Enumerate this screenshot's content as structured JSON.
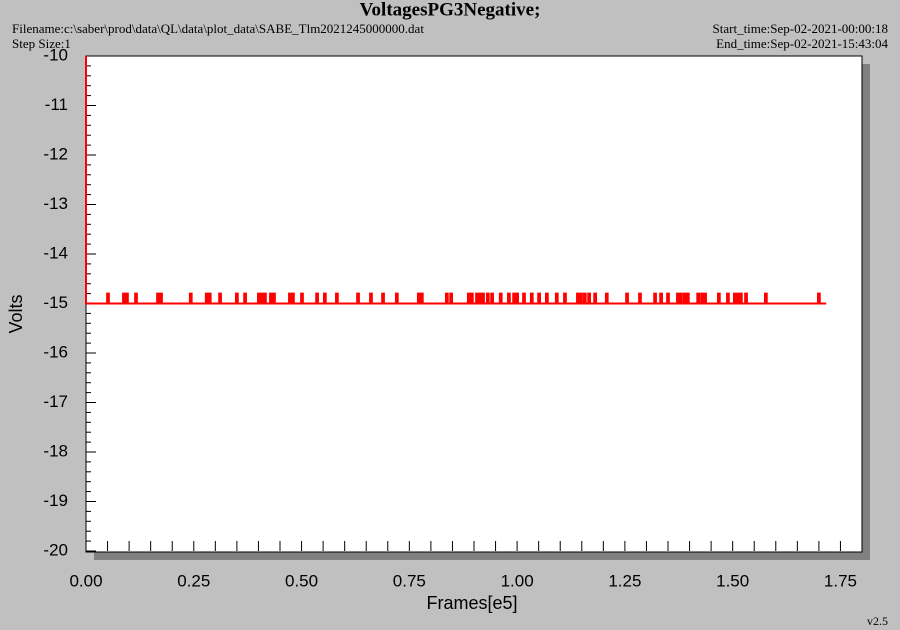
{
  "chart_data": {
    "type": "line",
    "step": true,
    "title": "VoltagesPG3Negative;",
    "filename": "Filename:c:\\saber\\prod\\data\\QL\\data\\plot_data\\SABE_Tlm2021245000000.dat",
    "step_size": "Step Size:1",
    "start_time": "Start_time:Sep-02-2021-00:00:18",
    "end_time": "End_time:Sep-02-2021-15:43:04",
    "xlabel": "Frames[e5]",
    "ylabel": "Volts",
    "version": "v2.5",
    "color": "#ff0000",
    "xlim": [
      0,
      1.8
    ],
    "ylim": [
      -20,
      -10
    ],
    "xticks": [
      {
        "value": 0,
        "label": "0.00"
      },
      0.25,
      {
        "value": 0.5,
        "label": "0.50"
      },
      0.75,
      {
        "value": 1,
        "label": "1.00"
      },
      1.25,
      {
        "value": 1.5,
        "label": "1.50"
      },
      1.75
    ],
    "yticks": [
      -10,
      -11,
      -12,
      -13,
      -14,
      -15,
      -16,
      -17,
      -18,
      -19,
      -20
    ],
    "x": [
      0,
      0,
      0.049,
      0.053,
      0.086,
      0.09,
      0.093,
      0.097,
      0.114,
      0.118,
      0.165,
      0.169,
      0.172,
      0.176,
      0.241,
      0.245,
      0.278,
      0.282,
      0.285,
      0.289,
      0.309,
      0.313,
      0.348,
      0.352,
      0.367,
      0.371,
      0.399,
      0.403,
      0.406,
      0.41,
      0.413,
      0.417,
      0.427,
      0.431,
      0.434,
      0.438,
      0.471,
      0.475,
      0.478,
      0.482,
      0.499,
      0.503,
      0.534,
      0.538,
      0.552,
      0.556,
      0.58,
      0.584,
      0.629,
      0.633,
      0.659,
      0.663,
      0.687,
      0.691,
      0.719,
      0.723,
      0.77,
      0.774,
      0.777,
      0.781,
      0.835,
      0.839,
      0.845,
      0.849,
      0.886,
      0.89,
      0.893,
      0.897,
      0.905,
      0.909,
      0.912,
      0.916,
      0.919,
      0.923,
      0.93,
      0.934,
      0.94,
      0.944,
      0.96,
      0.964,
      0.979,
      0.983,
      0.991,
      0.995,
      0.998,
      1.002,
      1.014,
      1.018,
      1.032,
      1.036,
      1.049,
      1.053,
      1.067,
      1.071,
      1.09,
      1.094,
      1.109,
      1.113,
      1.139,
      1.143,
      1.146,
      1.15,
      1.155,
      1.159,
      1.165,
      1.169,
      1.179,
      1.183,
      1.206,
      1.21,
      1.253,
      1.257,
      1.283,
      1.287,
      1.318,
      1.322,
      1.332,
      1.336,
      1.348,
      1.352,
      1.371,
      1.375,
      1.378,
      1.382,
      1.387,
      1.391,
      1.394,
      1.398,
      1.418,
      1.422,
      1.427,
      1.431,
      1.434,
      1.438,
      1.466,
      1.47,
      1.487,
      1.491,
      1.503,
      1.507,
      1.51,
      1.514,
      1.517,
      1.521,
      1.529,
      1.533,
      1.575,
      1.579,
      1.698,
      1.702,
      1.717
    ],
    "values": [
      -10,
      -15,
      -14.8,
      -15,
      -14.8,
      -15,
      -14.8,
      -15,
      -14.8,
      -15,
      -14.8,
      -15,
      -14.8,
      -15,
      -14.8,
      -15,
      -14.8,
      -15,
      -14.8,
      -15,
      -14.8,
      -15,
      -14.8,
      -15,
      -14.8,
      -15,
      -14.8,
      -15,
      -14.8,
      -15,
      -14.8,
      -15,
      -14.8,
      -15,
      -14.8,
      -15,
      -14.8,
      -15,
      -14.8,
      -15,
      -14.8,
      -15,
      -14.8,
      -15,
      -14.8,
      -15,
      -14.8,
      -15,
      -14.8,
      -15,
      -14.8,
      -15,
      -14.8,
      -15,
      -14.8,
      -15,
      -14.8,
      -15,
      -14.8,
      -15,
      -14.8,
      -15,
      -14.8,
      -15,
      -14.8,
      -15,
      -14.8,
      -15,
      -14.8,
      -15,
      -14.8,
      -15,
      -14.8,
      -15,
      -14.8,
      -15,
      -14.8,
      -15,
      -14.8,
      -15,
      -14.8,
      -15,
      -14.8,
      -15,
      -14.8,
      -15,
      -14.8,
      -15,
      -14.8,
      -15,
      -14.8,
      -15,
      -14.8,
      -15,
      -14.8,
      -15,
      -14.8,
      -15,
      -14.8,
      -15,
      -14.8,
      -15,
      -14.8,
      -15,
      -14.8,
      -15,
      -14.8,
      -15,
      -14.8,
      -15,
      -14.8,
      -15,
      -14.8,
      -15,
      -14.8,
      -15,
      -14.8,
      -15,
      -14.8,
      -15,
      -14.8,
      -15,
      -14.8,
      -15,
      -14.8,
      -15,
      -14.8,
      -15,
      -14.8,
      -15,
      -14.8,
      -15,
      -14.8,
      -15,
      -14.8,
      -15,
      -14.8,
      -15,
      -14.8,
      -15,
      -14.8,
      -15,
      -14.8,
      -15,
      -14.8,
      -15,
      -14.8,
      -15,
      -14.8,
      -15,
      -15
    ]
  }
}
